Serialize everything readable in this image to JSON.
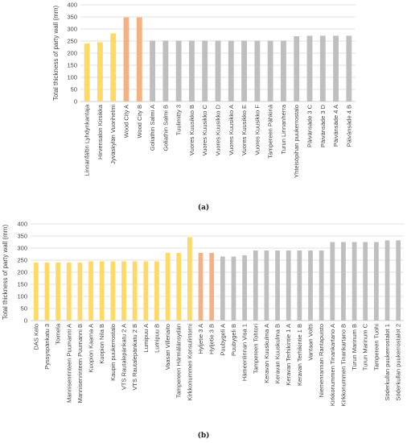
{
  "colors": {
    "yellow": "#FFD966",
    "orange": "#F4B183",
    "gray": "#BFBFBF"
  },
  "chart_data": [
    {
      "type": "bar",
      "caption": "(a)",
      "ylabel": "Total thickness of party wall (mm)",
      "ylim": [
        0,
        400
      ],
      "yticks": [
        0,
        50,
        100,
        150,
        200,
        250,
        300,
        350,
        400
      ],
      "grid": true,
      "categories": [
        "Linnanfältin Lyhdynkantaja",
        "Hirvensalon Kirsikka",
        "Jyväskylän Vuorihelmi",
        "Wood City A",
        "Wood City B",
        "Goliathin Salmi A",
        "Goliathin Salmi B",
        "Tuulimitty 3",
        "Vuores Kuusikko B",
        "Vuores Kuusikko C",
        "Vuores Kuusikko D",
        "Vuores Kuusikko A",
        "Vuores Kuusikko E",
        "Vuores Kuusikko F",
        "Tampereen Pähkinä",
        "Turun Linnanherra",
        "Yhteisöpihan puukerrostalo",
        "Päivänsäde 3 C",
        "Päivänsäde 3 D",
        "Päivänsäde 4 A",
        "Päivänsäde 4 B"
      ],
      "values": [
        240,
        245,
        282,
        348,
        348,
        252,
        252,
        252,
        252,
        252,
        252,
        252,
        252,
        252,
        252,
        252,
        270,
        272,
        272,
        272,
        272
      ],
      "color_groups": [
        "yellow",
        "yellow",
        "yellow",
        "orange",
        "orange",
        "gray",
        "gray",
        "gray",
        "gray",
        "gray",
        "gray",
        "gray",
        "gray",
        "gray",
        "gray",
        "gray",
        "gray",
        "gray",
        "gray",
        "gray",
        "gray"
      ]
    },
    {
      "type": "bar",
      "caption": "(b)",
      "ylabel": "Total thickness of party wall (mm)",
      "ylim": [
        0,
        400
      ],
      "yticks": [
        0,
        50,
        100,
        150,
        200,
        250,
        300,
        350,
        400
      ],
      "grid": true,
      "categories": [
        "DAS Kelo",
        "Pyssyspänkatu 3",
        "Toimela",
        "Mannisenrinteen Puumanni A",
        "Mannisenrinteen Puumanni B",
        "Kuopion Kaarna A",
        "Kuopion Nila B",
        "Kaupin puukerrostalo",
        "VTS Rautalepänkatu 2 A",
        "VTS Rautalepänkatu 2 B",
        "Lumipuu A",
        "Lumipuu B",
        "Vaasan Villeriaito",
        "Tampereen Härmälänsydän",
        "Kirkkonummen Konsulintorni",
        "Hyljetie 3 A",
        "Hyljetie 3 B",
        "Puubygeli A",
        "Puubygeli B",
        "Hämeenlinnan Visa 1",
        "Tampereen Tohtori",
        "Keravan Kuuskulma A",
        "Keravan Kuuskulma B",
        "Keravan Terhikintie 1 A",
        "Keravan Terhikintie 1 B",
        "Vantaan Voltti",
        "Niemenrannan Rantapuisto",
        "Kirkkonummen Tinankartano A",
        "Kirkkonummen Tinankartano B",
        "Turun Marinum B",
        "Turun Marinum C",
        "Tampereen Tuohi",
        "Söderkullan puukerrostalot 1",
        "Söderkullan puukerrostalot 2"
      ],
      "values": [
        240,
        240,
        240,
        240,
        240,
        245,
        245,
        245,
        245,
        245,
        245,
        245,
        280,
        280,
        345,
        280,
        280,
        265,
        265,
        270,
        290,
        290,
        290,
        290,
        290,
        290,
        290,
        325,
        325,
        325,
        325,
        325,
        332,
        332
      ],
      "color_groups": [
        "yellow",
        "yellow",
        "yellow",
        "yellow",
        "yellow",
        "yellow",
        "yellow",
        "yellow",
        "yellow",
        "yellow",
        "yellow",
        "yellow",
        "yellow",
        "yellow",
        "yellow",
        "orange",
        "orange",
        "gray",
        "gray",
        "gray",
        "gray",
        "gray",
        "gray",
        "gray",
        "gray",
        "gray",
        "gray",
        "gray",
        "gray",
        "gray",
        "gray",
        "gray",
        "gray",
        "gray"
      ]
    }
  ]
}
